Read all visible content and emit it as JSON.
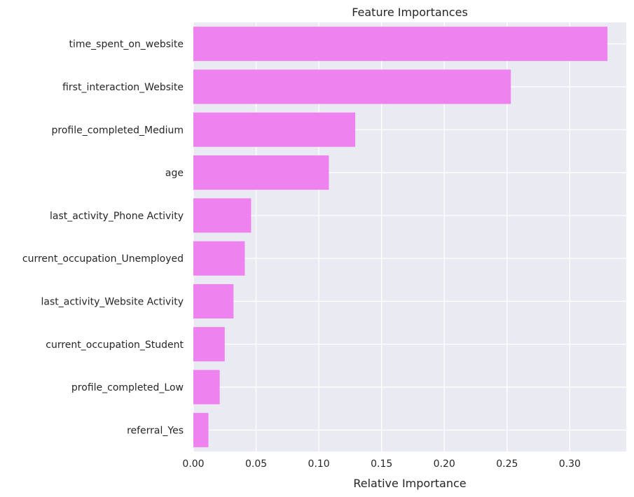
{
  "chart_data": {
    "type": "bar",
    "orientation": "horizontal",
    "title": "Feature Importances",
    "xlabel": "Relative Importance",
    "ylabel": "",
    "xlim": [
      0,
      0.345
    ],
    "xticks": [
      0.0,
      0.05,
      0.1,
      0.15,
      0.2,
      0.25,
      0.3
    ],
    "xtick_labels": [
      "0.00",
      "0.05",
      "0.10",
      "0.15",
      "0.20",
      "0.25",
      "0.30"
    ],
    "categories": [
      "time_spent_on_website",
      "first_interaction_Website",
      "profile_completed_Medium",
      "age",
      "last_activity_Phone Activity",
      "current_occupation_Unemployed",
      "last_activity_Website Activity",
      "current_occupation_Student",
      "profile_completed_Low",
      "referral_Yes"
    ],
    "values": [
      0.33,
      0.253,
      0.129,
      0.108,
      0.046,
      0.041,
      0.032,
      0.025,
      0.021,
      0.012
    ],
    "bar_color": "#ee82ee",
    "plot_background": "#eaeaf2",
    "grid_color": "#ffffff",
    "grid": true,
    "legend": "none"
  }
}
